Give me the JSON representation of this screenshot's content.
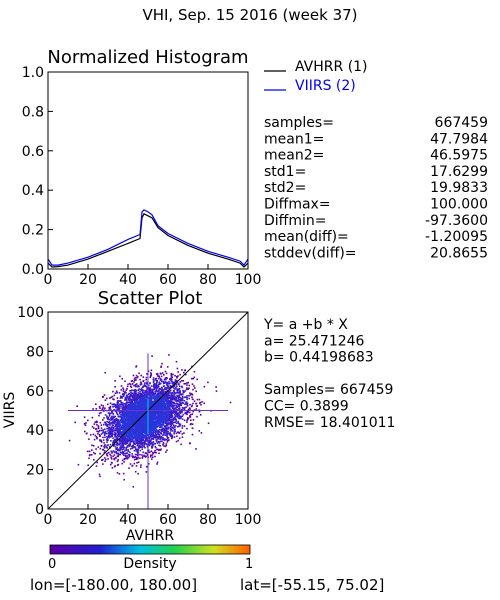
{
  "page_title": "VHI,  Sep. 15 2016 (week 37)",
  "footer": {
    "lon_text": "lon=[-180.00, 180.00]",
    "lat_text": "lat=[-55.15, 75.02]"
  },
  "histogram": {
    "title": "Normalized Histogram",
    "legend": [
      {
        "label": "AVHRR (1)",
        "color": "#000000"
      },
      {
        "label": "VIIRS (2)",
        "color": "#0000ff"
      }
    ],
    "stats": [
      {
        "label": "samples=",
        "value": "667459"
      },
      {
        "label": "mean1=",
        "value": "47.7984"
      },
      {
        "label": "mean2=",
        "value": "46.5975"
      },
      {
        "label": "std1=",
        "value": "17.6299"
      },
      {
        "label": "std2=",
        "value": "19.9833"
      },
      {
        "label": "Diffmax=",
        "value": "100.000"
      },
      {
        "label": "Diffmin=",
        "value": "-97.3600"
      },
      {
        "label": "mean(diff)=",
        "value": "-1.20095"
      },
      {
        "label": "stddev(diff)=",
        "value": "20.8655"
      }
    ]
  },
  "scatter": {
    "title": "Scatter Plot",
    "fit_lines": [
      "Y= a +b * X",
      "a= 25.471246",
      "b= 0.44198683",
      "",
      "Samples= 667459",
      "CC=  0.3899",
      "RMSE= 18.401011"
    ]
  },
  "colorbar": {
    "label": "Density",
    "min_label": "0",
    "max_label": "1"
  },
  "chart_data": [
    {
      "type": "line",
      "title": "Normalized Histogram",
      "xlim": [
        0,
        100
      ],
      "ylim": [
        0,
        1
      ],
      "xticks": [
        "0",
        "20",
        "40",
        "60",
        "80",
        "100"
      ],
      "yticks": [
        "0.0",
        "0.2",
        "0.4",
        "0.6",
        "0.8",
        "1.0"
      ],
      "series": [
        {
          "name": "AVHRR (1)",
          "color": "#000000",
          "x": [
            0,
            2,
            5,
            10,
            20,
            30,
            40,
            46,
            47,
            48,
            50,
            52,
            55,
            60,
            70,
            80,
            90,
            96,
            98,
            100
          ],
          "y": [
            0.03,
            0.01,
            0.012,
            0.02,
            0.05,
            0.09,
            0.13,
            0.155,
            0.26,
            0.28,
            0.27,
            0.26,
            0.21,
            0.17,
            0.12,
            0.08,
            0.05,
            0.03,
            0.01,
            0.03
          ]
        },
        {
          "name": "VIIRS (2)",
          "color": "#0000ff",
          "x": [
            0,
            2,
            5,
            10,
            20,
            30,
            40,
            46,
            47,
            48,
            50,
            52,
            55,
            60,
            70,
            80,
            90,
            96,
            98,
            100
          ],
          "y": [
            0.05,
            0.02,
            0.02,
            0.03,
            0.06,
            0.1,
            0.15,
            0.175,
            0.29,
            0.3,
            0.29,
            0.275,
            0.22,
            0.18,
            0.13,
            0.09,
            0.06,
            0.04,
            0.02,
            0.05
          ]
        }
      ]
    },
    {
      "type": "scatter",
      "title": "Scatter Plot",
      "xlabel": "AVHRR",
      "ylabel": "VIIRS",
      "xlim": [
        0,
        100
      ],
      "ylim": [
        0,
        100
      ],
      "xticks": [
        "0",
        "20",
        "40",
        "60",
        "80",
        "100"
      ],
      "yticks": [
        "0",
        "20",
        "40",
        "60",
        "80",
        "100"
      ],
      "density_center": [
        48,
        47
      ],
      "density_spread": [
        10,
        9
      ],
      "density_correlation": 0.39,
      "crosshair": {
        "x": 50,
        "y": 50,
        "x_range": [
          10,
          90
        ],
        "y_range": [
          0,
          79
        ]
      },
      "colormap": [
        "#5b00a8",
        "#2020d0",
        "#00c0e0",
        "#20d050",
        "#d0e020",
        "#ff6000"
      ]
    }
  ]
}
